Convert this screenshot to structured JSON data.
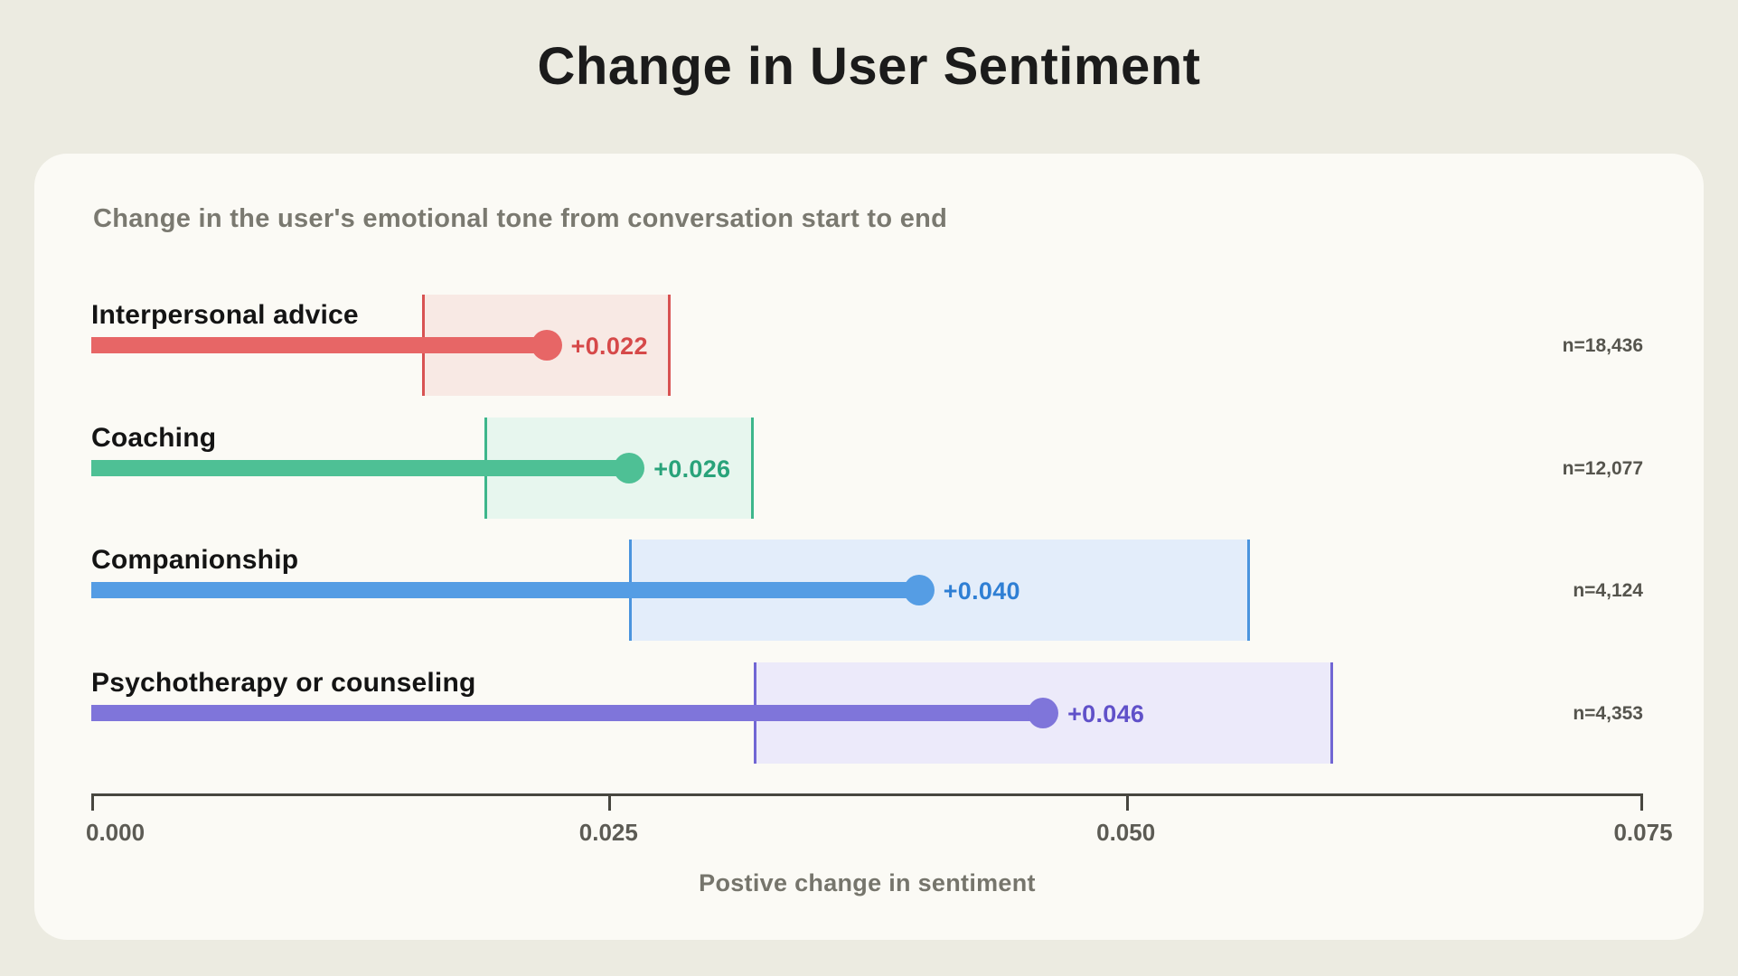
{
  "title": "Change in User Sentiment",
  "card": {
    "subtitle": "Change in the user's emotional tone from conversation start to end"
  },
  "chart_data": {
    "type": "bar",
    "subtype": "horizontal-lollipop-with-ci-bands",
    "title": "Change in User Sentiment",
    "subtitle": "Change in the user's emotional tone from conversation start to end",
    "xlabel": "Postive change in sentiment",
    "xlim": [
      0,
      0.075
    ],
    "x_ticks": [
      0,
      0.025,
      0.05,
      0.075
    ],
    "x_tick_labels": [
      "0.000",
      "0.025",
      "0.050",
      "0.075"
    ],
    "grid": false,
    "legend": false,
    "series": [
      {
        "category": "Interpersonal advice",
        "value": 0.022,
        "value_label": "+0.022",
        "ci": [
          0.016,
          0.028
        ],
        "n_label": "n=18,436",
        "bar_color": "#e76666",
        "text_color": "#d64949",
        "band_fill": "#f8e9e4",
        "band_edge": "#d85252"
      },
      {
        "category": "Coaching",
        "value": 0.026,
        "value_label": "+0.026",
        "ci": [
          0.019,
          0.032
        ],
        "n_label": "n=12,077",
        "bar_color": "#4ec095",
        "text_color": "#29a37a",
        "band_fill": "#e7f6ee",
        "band_edge": "#3db68b"
      },
      {
        "category": "Companionship",
        "value": 0.04,
        "value_label": "+0.040",
        "ci": [
          0.026,
          0.056
        ],
        "n_label": "n=4,124",
        "bar_color": "#559de4",
        "text_color": "#2f7fd4",
        "band_fill": "#e3edfa",
        "band_edge": "#4a94de"
      },
      {
        "category": "Psychotherapy or counseling",
        "value": 0.046,
        "value_label": "+0.046",
        "ci": [
          0.032,
          0.06
        ],
        "n_label": "n=4,353",
        "bar_color": "#7f75da",
        "text_color": "#6051c9",
        "band_fill": "#eceafa",
        "band_edge": "#7166d4"
      }
    ]
  },
  "colors": {
    "page_bg": "#ecebe1",
    "card_bg": "#fbfaf5",
    "title": "#1b1b1b",
    "subtitle": "#7a7970",
    "axis": "#47463f"
  }
}
